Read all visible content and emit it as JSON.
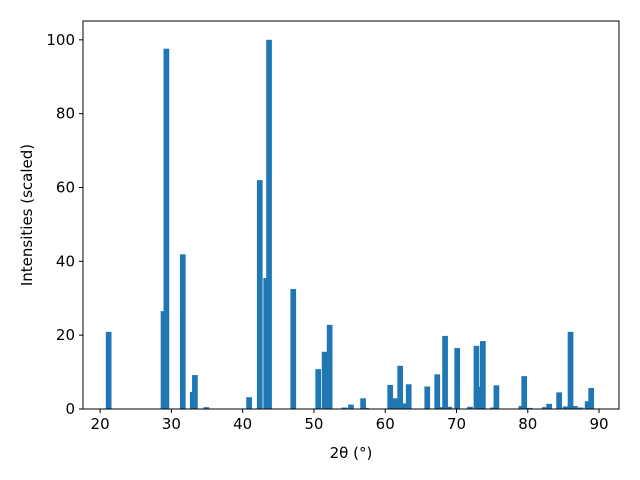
{
  "chart_data": {
    "type": "bar",
    "xlabel": "2θ (°)",
    "ylabel": "Intensities (scaled)",
    "x": [
      21.2,
      28.9,
      29.3,
      31.6,
      33.0,
      33.3,
      34.9,
      40.9,
      42.4,
      43.3,
      43.7,
      47.1,
      50.6,
      51.5,
      52.2,
      54.3,
      55.2,
      56.9,
      57.3,
      60.7,
      61.4,
      62.1,
      62.7,
      63.3,
      65.9,
      67.3,
      67.8,
      68.4,
      69.0,
      70.1,
      71.9,
      72.8,
      73.3,
      73.7,
      75.1,
      75.6,
      79.1,
      79.5,
      80.3,
      82.4,
      83.0,
      84.4,
      85.3,
      86.0,
      86.6,
      87.4,
      88.4,
      88.9
    ],
    "values": [
      20.9,
      26.5,
      97.6,
      41.9,
      4.6,
      9.2,
      0.5,
      3.2,
      62,
      35.5,
      100,
      32.5,
      10.8,
      15.5,
      22.8,
      0.4,
      1.2,
      2.9,
      0.3,
      6.5,
      2.9,
      11.7,
      1.5,
      6.7,
      6.1,
      9.4,
      0.5,
      19.8,
      0.6,
      16.5,
      0.6,
      17.1,
      6,
      18.4,
      0.4,
      6.4,
      0.8,
      8.9,
      0.3,
      0.5,
      1.4,
      4.5,
      0.7,
      20.9,
      0.8,
      0.4,
      2.1,
      5.7
    ],
    "color": "#1f77b4",
    "xlim": [
      17.6,
      92.8
    ],
    "xticks": [
      20,
      30,
      40,
      50,
      60,
      70,
      80,
      90
    ],
    "ylim": [
      0,
      105.1
    ],
    "yticks": [
      0,
      20,
      40,
      60,
      80,
      100
    ]
  }
}
